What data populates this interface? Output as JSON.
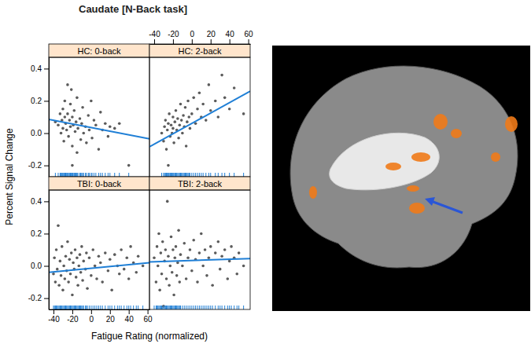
{
  "chart_data": {
    "type": "scatter",
    "title": "Caudate [N-Back task]",
    "x_label": "Fatigue Rating (normalized)",
    "y_label": "Percent Signal Change",
    "xlim": [
      -45,
      62
    ],
    "xticks": [
      -40,
      -20,
      0,
      20,
      40,
      60
    ],
    "ylim": [
      -0.27,
      0.47
    ],
    "yticks": [
      -0.2,
      {
        "value": 0,
        "label": "0.0"
      },
      0.2,
      0.4
    ],
    "panels": [
      {
        "title": "HC: 0-back",
        "series": [
          {
            "type": "scatter",
            "color": "#5b5b5b",
            "marker": "circle",
            "x": [
              -35,
              -33,
              -32,
              -31,
              -30,
              -30,
              -29,
              -28,
              -28,
              -27,
              -26,
              -25,
              -25,
              -24,
              -23,
              -22,
              -22,
              -21,
              -20,
              -20,
              -19,
              -18,
              -17,
              -16,
              -15,
              -15,
              -14,
              -12,
              -11,
              -10,
              -9,
              -8,
              -6,
              -5,
              -3,
              -2,
              0,
              1,
              3,
              5,
              8,
              10,
              12,
              15,
              18,
              20,
              25,
              30,
              40,
              -20,
              -38
            ],
            "values": [
              0.05,
              0.12,
              0.0,
              0.08,
              0.15,
              0.03,
              -0.05,
              0.1,
              0.2,
              0.06,
              0.02,
              0.3,
              0.12,
              -0.02,
              0.08,
              0.18,
              0.04,
              0.27,
              -0.08,
              0.1,
              0.05,
              0.14,
              0.01,
              0.07,
              -0.12,
              0.22,
              0.03,
              0.09,
              -0.04,
              0.06,
              0.16,
              0.0,
              0.04,
              -0.06,
              0.11,
              0.02,
              0.2,
              -0.03,
              0.08,
              0.05,
              -0.1,
              0.13,
              0.02,
              0.06,
              -0.02,
              0.04,
              0.03,
              0.06,
              -0.2,
              -0.2,
              0.07
            ]
          },
          {
            "type": "line",
            "color": "#1f7fd6",
            "x": [
              -45,
              62
            ],
            "values": [
              0.085,
              -0.035
            ]
          }
        ]
      },
      {
        "title": "HC: 2-back",
        "series": [
          {
            "type": "scatter",
            "color": "#5b5b5b",
            "marker": "circle",
            "x": [
              -32,
              -30,
              -29,
              -28,
              -27,
              -26,
              -25,
              -24,
              -23,
              -22,
              -21,
              -20,
              -20,
              -19,
              -18,
              -17,
              -16,
              -15,
              -14,
              -13,
              -12,
              -11,
              -10,
              -9,
              -8,
              -7,
              -6,
              -5,
              -4,
              -3,
              -2,
              0,
              2,
              4,
              6,
              8,
              10,
              12,
              15,
              18,
              20,
              25,
              28,
              32,
              35,
              40,
              45,
              55,
              -25
            ],
            "values": [
              0.0,
              -0.05,
              0.04,
              0.08,
              -0.1,
              0.02,
              0.06,
              0.12,
              -0.02,
              0.05,
              0.0,
              0.1,
              0.03,
              -0.06,
              0.07,
              0.14,
              0.02,
              0.09,
              -0.03,
              0.05,
              0.18,
              0.08,
              0.0,
              0.11,
              0.04,
              0.16,
              -0.08,
              0.07,
              0.2,
              0.1,
              0.03,
              0.12,
              0.22,
              0.06,
              0.15,
              0.25,
              0.1,
              0.18,
              0.08,
              0.3,
              0.14,
              0.2,
              0.1,
              0.36,
              0.22,
              0.15,
              0.28,
              0.12,
              -0.2
            ]
          },
          {
            "type": "line",
            "color": "#1f7fd6",
            "x": [
              -45,
              62
            ],
            "values": [
              -0.085,
              0.26
            ]
          }
        ]
      },
      {
        "title": "TBI: 0-back",
        "series": [
          {
            "type": "scatter",
            "color": "#5b5b5b",
            "marker": "circle",
            "x": [
              -40,
              -39,
              -38,
              -37,
              -36,
              -35,
              -34,
              -33,
              -32,
              -31,
              -30,
              -29,
              -28,
              -27,
              -26,
              -25,
              -24,
              -23,
              -22,
              -21,
              -20,
              -19,
              -18,
              -17,
              -16,
              -15,
              -14,
              -13,
              -12,
              -11,
              -10,
              -9,
              -8,
              -6,
              -5,
              -4,
              -2,
              0,
              2,
              4,
              6,
              8,
              10,
              12,
              15,
              18,
              20,
              22,
              25,
              28,
              30,
              32,
              35,
              38,
              40,
              42,
              45,
              48,
              50,
              55
            ],
            "values": [
              -0.05,
              0.05,
              -0.1,
              0.1,
              -0.02,
              0.25,
              -0.12,
              0.03,
              -0.06,
              0.12,
              -0.15,
              0.0,
              -0.08,
              0.06,
              -0.03,
              0.15,
              -0.1,
              0.04,
              -0.05,
              0.08,
              -0.18,
              0.02,
              -0.02,
              0.1,
              -0.07,
              0.05,
              -0.12,
              0.0,
              0.07,
              -0.04,
              0.12,
              -0.09,
              0.03,
              -0.02,
              0.08,
              -0.14,
              0.05,
              -0.06,
              0.1,
              0.0,
              -0.08,
              0.06,
              0.02,
              -0.1,
              0.08,
              -0.03,
              0.04,
              -0.15,
              0.07,
              0.0,
              -0.05,
              0.1,
              -0.02,
              0.05,
              -0.08,
              0.12,
              0.02,
              -0.04,
              0.06,
              0.0
            ]
          },
          {
            "type": "line",
            "color": "#1f7fd6",
            "x": [
              -45,
              62
            ],
            "values": [
              -0.04,
              0.02
            ]
          }
        ]
      },
      {
        "title": "TBI: 2-back",
        "series": [
          {
            "type": "scatter",
            "color": "#5b5b5b",
            "marker": "circle",
            "x": [
              -40,
              -38,
              -37,
              -36,
              -35,
              -34,
              -33,
              -32,
              -31,
              -30,
              -29,
              -28,
              -27,
              -26,
              -25,
              -24,
              -23,
              -22,
              -21,
              -20,
              -19,
              -18,
              -17,
              -16,
              -15,
              -14,
              -13,
              -12,
              -10,
              -8,
              -6,
              -4,
              -2,
              0,
              2,
              4,
              6,
              8,
              10,
              12,
              14,
              16,
              18,
              20,
              22,
              25,
              28,
              30,
              32,
              35,
              38,
              40,
              42,
              45,
              48,
              50,
              55
            ],
            "values": [
              0.05,
              -0.1,
              0.12,
              0.0,
              0.2,
              -0.15,
              0.08,
              -0.05,
              0.15,
              -0.25,
              0.03,
              0.1,
              -0.08,
              0.4,
              0.06,
              -0.12,
              0.0,
              0.18,
              -0.04,
              0.1,
              -0.18,
              0.05,
              0.12,
              -0.06,
              0.02,
              0.22,
              -0.1,
              0.07,
              0.0,
              0.14,
              -0.08,
              0.05,
              0.1,
              -0.03,
              0.16,
              0.04,
              -0.1,
              0.08,
              0.2,
              0.0,
              0.1,
              -0.06,
              0.05,
              0.12,
              -0.12,
              0.08,
              0.15,
              -0.02,
              0.06,
              0.1,
              -0.08,
              0.03,
              0.12,
              0.05,
              -0.05,
              0.08,
              0.0
            ]
          },
          {
            "type": "line",
            "color": "#1f7fd6",
            "x": [
              -45,
              62
            ],
            "values": [
              0.025,
              0.045
            ]
          }
        ]
      }
    ]
  }
}
